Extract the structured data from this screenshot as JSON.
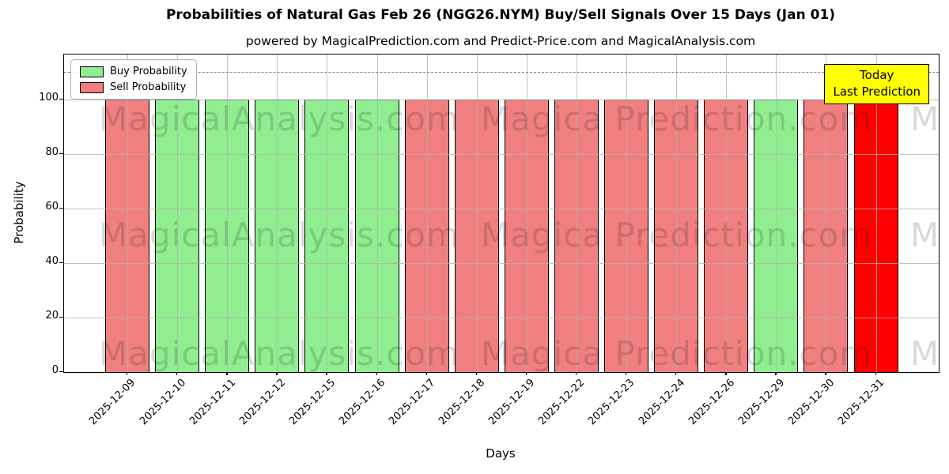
{
  "title": "Probabilities of Natural Gas Feb 26 (NGG26.NYM) Buy/Sell Signals Over 15 Days (Jan 01)",
  "subtitle": "powered by MagicalPrediction.com and Predict-Price.com and MagicalAnalysis.com",
  "legend": {
    "buy_label": "Buy Probability",
    "sell_label": "Sell Probability"
  },
  "annotation": {
    "line1": "Today",
    "line2": "Last Prediction"
  },
  "axes": {
    "ylabel": "Probability",
    "xlabel": "Days",
    "yticks": [
      0,
      20,
      40,
      60,
      80,
      100
    ],
    "ylim": [
      0,
      116.5
    ],
    "dashed_line_y": 110
  },
  "watermarks": [
    "MagicalAnalysis.com",
    "Magica Prediction.com"
  ],
  "colors": {
    "buy": "#90EE90",
    "sell": "#F08080",
    "last_prediction": "#FF0000",
    "annotation_bg": "#FFFF00",
    "grid": "#b0b0b0",
    "dashed_line": "#7f7f7f"
  },
  "chart_data": {
    "type": "bar",
    "title": "Probabilities of Natural Gas Feb 26 (NGG26.NYM) Buy/Sell Signals Over 15 Days (Jan 01)",
    "xlabel": "Days",
    "ylabel": "Probability",
    "categories": [
      "2025-12-09",
      "2025-12-10",
      "2025-12-11",
      "2025-12-12",
      "2025-12-15",
      "2025-12-16",
      "2025-12-17",
      "2025-12-18",
      "2025-12-19",
      "2025-12-22",
      "2025-12-23",
      "2025-12-24",
      "2025-12-26",
      "2025-12-29",
      "2025-12-30",
      "2025-12-31"
    ],
    "values": [
      100,
      100,
      100,
      100,
      100,
      100,
      100,
      100,
      100,
      100,
      100,
      100,
      100,
      100,
      100,
      100
    ],
    "bar_signals": [
      "sell",
      "buy",
      "buy",
      "buy",
      "buy",
      "buy",
      "sell",
      "sell",
      "sell",
      "sell",
      "sell",
      "sell",
      "sell",
      "buy",
      "sell",
      "last_prediction"
    ],
    "ylim": [
      0,
      116.5
    ],
    "yticks": [
      0,
      20,
      40,
      60,
      80,
      100
    ],
    "grid": true,
    "legend_position": "upper left",
    "legend_entries": [
      {
        "name": "Buy Probability",
        "signal": "buy"
      },
      {
        "name": "Sell Probability",
        "signal": "sell"
      }
    ],
    "annotation_text": "Today Last Prediction",
    "dashed_line_y": 110
  }
}
